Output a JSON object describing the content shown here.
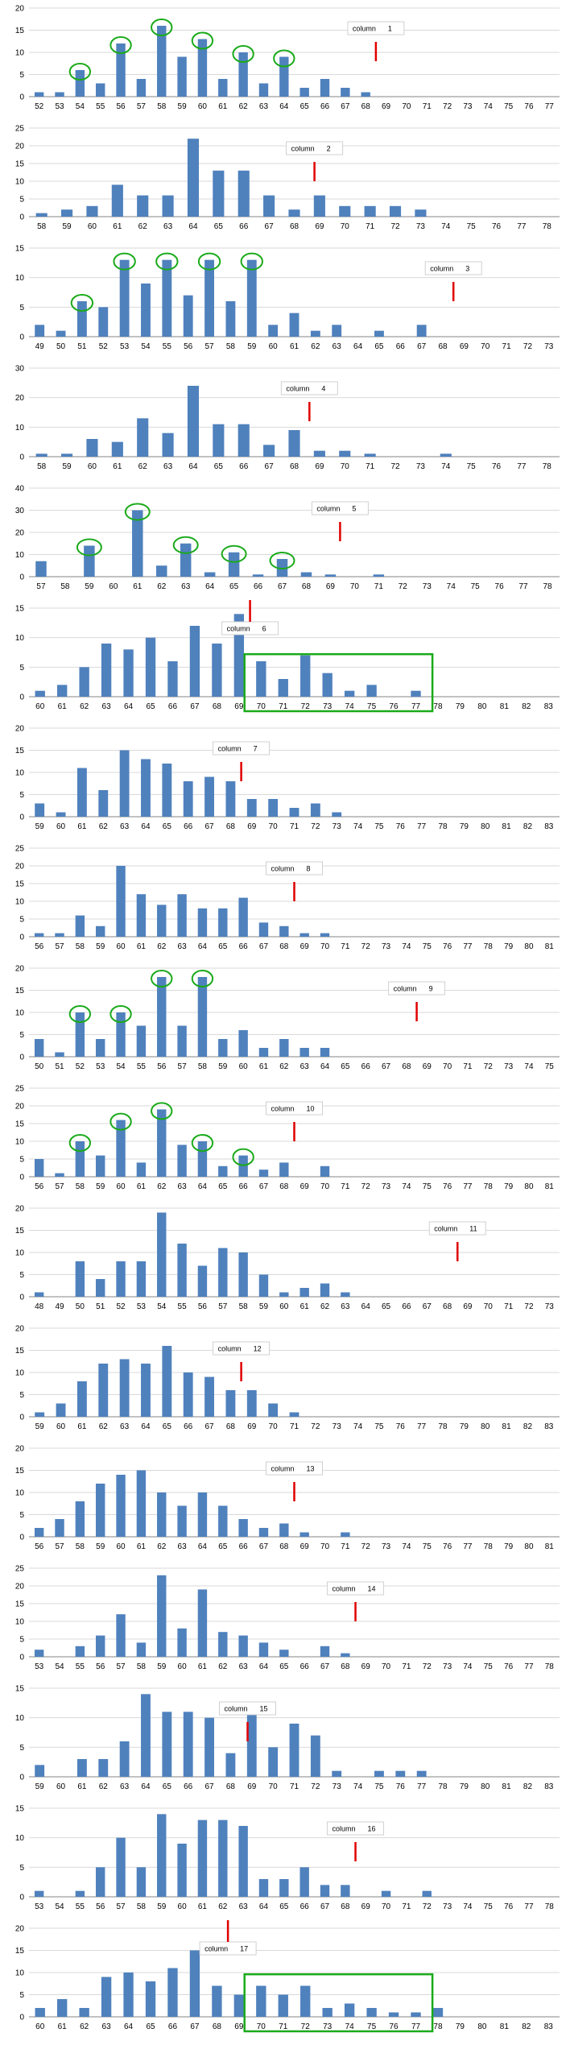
{
  "chart_data": [
    {
      "type": "bar",
      "ylim": [
        0,
        20
      ],
      "yticks": [
        0,
        5,
        10,
        15,
        20
      ],
      "categories": [
        "52",
        "53",
        "54",
        "55",
        "56",
        "57",
        "58",
        "59",
        "60",
        "61",
        "62",
        "63",
        "64",
        "65",
        "66",
        "67",
        "68",
        "69",
        "70",
        "71",
        "72",
        "73",
        "74",
        "75",
        "76",
        "77"
      ],
      "values": [
        1,
        1,
        6,
        3,
        12,
        4,
        16,
        9,
        13,
        4,
        10,
        3,
        9,
        2,
        4,
        2,
        1,
        0,
        0,
        0,
        0,
        0,
        0,
        0,
        0,
        0
      ],
      "legend": {
        "label": "column",
        "number": "1"
      },
      "marker": 68.5,
      "circles": [
        "54",
        "56",
        "58",
        "60",
        "62",
        "64"
      ]
    },
    {
      "type": "bar",
      "ylim": [
        0,
        25
      ],
      "yticks": [
        0,
        5,
        10,
        15,
        20,
        25
      ],
      "categories": [
        "58",
        "59",
        "60",
        "61",
        "62",
        "63",
        "64",
        "65",
        "66",
        "67",
        "68",
        "69",
        "70",
        "71",
        "72",
        "73",
        "74",
        "75",
        "76",
        "77",
        "78"
      ],
      "values": [
        1,
        2,
        3,
        9,
        6,
        6,
        22,
        13,
        13,
        6,
        2,
        6,
        3,
        3,
        3,
        2,
        0,
        0,
        0,
        0,
        0
      ],
      "legend": {
        "label": "column",
        "number": "2"
      },
      "marker": 68.8
    },
    {
      "type": "bar",
      "ylim": [
        0,
        15
      ],
      "yticks": [
        0,
        5,
        10,
        15
      ],
      "categories": [
        "49",
        "50",
        "51",
        "52",
        "53",
        "54",
        "55",
        "56",
        "57",
        "58",
        "59",
        "60",
        "61",
        "62",
        "63",
        "64",
        "65",
        "66",
        "67",
        "68",
        "69",
        "70",
        "71",
        "72",
        "73"
      ],
      "values": [
        2,
        1,
        6,
        5,
        13,
        9,
        13,
        7,
        13,
        6,
        13,
        2,
        4,
        1,
        2,
        0,
        1,
        0,
        2,
        0,
        0,
        0,
        0,
        0,
        0
      ],
      "legend": {
        "label": "column",
        "number": "3"
      },
      "marker": 68.5,
      "circles": [
        "51",
        "53",
        "55",
        "57",
        "59"
      ]
    },
    {
      "type": "bar",
      "ylim": [
        0,
        30
      ],
      "yticks": [
        0,
        10,
        20,
        30
      ],
      "categories": [
        "58",
        "59",
        "60",
        "61",
        "62",
        "63",
        "64",
        "65",
        "66",
        "67",
        "68",
        "69",
        "70",
        "71",
        "72",
        "73",
        "74",
        "75",
        "76",
        "77",
        "78"
      ],
      "values": [
        1,
        1,
        6,
        5,
        13,
        8,
        24,
        11,
        11,
        4,
        9,
        2,
        2,
        1,
        0,
        0,
        1,
        0,
        0,
        0,
        0
      ],
      "legend": {
        "label": "column",
        "number": "4"
      },
      "marker": 68.6
    },
    {
      "type": "bar",
      "ylim": [
        0,
        40
      ],
      "yticks": [
        0,
        10,
        20,
        30,
        40
      ],
      "categories": [
        "57",
        "58",
        "59",
        "60",
        "61",
        "62",
        "63",
        "64",
        "65",
        "66",
        "67",
        "68",
        "69",
        "70",
        "71",
        "72",
        "73",
        "74",
        "75",
        "76",
        "77",
        "78"
      ],
      "values": [
        7,
        0,
        14,
        0,
        30,
        5,
        15,
        2,
        11,
        1,
        8,
        2,
        1,
        0,
        1,
        0,
        0,
        0,
        0,
        0,
        0,
        0
      ],
      "legend": {
        "label": "column",
        "number": "5"
      },
      "marker": 69.4,
      "circles": [
        "59",
        "61",
        "63",
        "65",
        "67"
      ]
    },
    {
      "type": "bar",
      "ylim": [
        0,
        15
      ],
      "yticks": [
        0,
        5,
        10,
        15
      ],
      "categories": [
        "60",
        "61",
        "62",
        "63",
        "64",
        "65",
        "66",
        "67",
        "68",
        "69",
        "70",
        "71",
        "72",
        "73",
        "74",
        "75",
        "76",
        "77",
        "78",
        "79",
        "80",
        "81",
        "82",
        "83"
      ],
      "values": [
        1,
        2,
        5,
        9,
        8,
        10,
        6,
        12,
        9,
        14,
        6,
        3,
        7,
        4,
        1,
        2,
        0,
        1,
        0,
        0,
        0,
        0,
        0,
        0
      ],
      "legend": {
        "label": "column",
        "number": "6"
      },
      "marker": 69.5,
      "marker_top": true,
      "highlight": [
        "70",
        "77"
      ]
    },
    {
      "type": "bar",
      "ylim": [
        0,
        20
      ],
      "yticks": [
        0,
        5,
        10,
        15,
        20
      ],
      "categories": [
        "59",
        "60",
        "61",
        "62",
        "63",
        "64",
        "65",
        "66",
        "67",
        "68",
        "69",
        "70",
        "71",
        "72",
        "73",
        "74",
        "75",
        "76",
        "77",
        "78",
        "79",
        "80",
        "81",
        "82",
        "83"
      ],
      "values": [
        3,
        1,
        11,
        6,
        15,
        13,
        12,
        8,
        9,
        8,
        4,
        4,
        2,
        3,
        1,
        0,
        0,
        0,
        0,
        0,
        0,
        0,
        0,
        0,
        0
      ],
      "legend": {
        "label": "column",
        "number": "7"
      },
      "marker": 68.5
    },
    {
      "type": "bar",
      "ylim": [
        0,
        25
      ],
      "yticks": [
        0,
        5,
        10,
        15,
        20,
        25
      ],
      "categories": [
        "56",
        "57",
        "58",
        "59",
        "60",
        "61",
        "62",
        "63",
        "64",
        "65",
        "66",
        "67",
        "68",
        "69",
        "70",
        "71",
        "72",
        "73",
        "74",
        "75",
        "76",
        "77",
        "78",
        "79",
        "80",
        "81"
      ],
      "values": [
        1,
        1,
        6,
        3,
        20,
        12,
        9,
        12,
        8,
        8,
        11,
        4,
        3,
        1,
        1,
        0,
        0,
        0,
        0,
        0,
        0,
        0,
        0,
        0,
        0,
        0
      ],
      "legend": {
        "label": "column",
        "number": "8"
      },
      "marker": 68.5
    },
    {
      "type": "bar",
      "ylim": [
        0,
        20
      ],
      "yticks": [
        0,
        5,
        10,
        15,
        20
      ],
      "categories": [
        "50",
        "51",
        "52",
        "53",
        "54",
        "55",
        "56",
        "57",
        "58",
        "59",
        "60",
        "61",
        "62",
        "63",
        "64",
        "65",
        "66",
        "67",
        "68",
        "69",
        "70",
        "71",
        "72",
        "73",
        "74",
        "75"
      ],
      "values": [
        4,
        1,
        10,
        4,
        10,
        7,
        18,
        7,
        18,
        4,
        6,
        2,
        4,
        2,
        2,
        0,
        0,
        0,
        0,
        0,
        0,
        0,
        0,
        0,
        0,
        0
      ],
      "legend": {
        "label": "column",
        "number": "9"
      },
      "marker": 68.5,
      "circles": [
        "52",
        "54",
        "56",
        "58"
      ]
    },
    {
      "type": "bar",
      "ylim": [
        0,
        25
      ],
      "yticks": [
        0,
        5,
        10,
        15,
        20,
        25
      ],
      "categories": [
        "56",
        "57",
        "58",
        "59",
        "60",
        "61",
        "62",
        "63",
        "64",
        "65",
        "66",
        "67",
        "68",
        "69",
        "70",
        "71",
        "72",
        "73",
        "74",
        "75",
        "76",
        "77",
        "78",
        "79",
        "80",
        "81"
      ],
      "values": [
        5,
        1,
        10,
        6,
        16,
        4,
        19,
        9,
        10,
        3,
        6,
        2,
        4,
        0,
        3,
        0,
        0,
        0,
        0,
        0,
        0,
        0,
        0,
        0,
        0,
        0
      ],
      "legend": {
        "label": "column",
        "number": "10"
      },
      "marker": 68.5,
      "circles": [
        "58",
        "60",
        "62",
        "64",
        "66"
      ]
    },
    {
      "type": "bar",
      "ylim": [
        0,
        20
      ],
      "yticks": [
        0,
        5,
        10,
        15,
        20
      ],
      "categories": [
        "48",
        "49",
        "50",
        "51",
        "52",
        "53",
        "54",
        "55",
        "56",
        "57",
        "58",
        "59",
        "60",
        "61",
        "62",
        "63",
        "64",
        "65",
        "66",
        "67",
        "68",
        "69",
        "70",
        "71",
        "72",
        "73"
      ],
      "values": [
        1,
        0,
        8,
        4,
        8,
        8,
        19,
        12,
        7,
        11,
        10,
        5,
        1,
        2,
        3,
        1,
        0,
        0,
        0,
        0,
        0,
        0,
        0,
        0,
        0,
        0
      ],
      "legend": {
        "label": "column",
        "number": "11"
      },
      "marker": 68.5
    },
    {
      "type": "bar",
      "ylim": [
        0,
        20
      ],
      "yticks": [
        0,
        5,
        10,
        15,
        20
      ],
      "categories": [
        "59",
        "60",
        "61",
        "62",
        "63",
        "64",
        "65",
        "66",
        "67",
        "68",
        "69",
        "70",
        "71",
        "72",
        "73",
        "74",
        "75",
        "76",
        "77",
        "78",
        "79",
        "80",
        "81",
        "82",
        "83"
      ],
      "values": [
        1,
        3,
        8,
        12,
        13,
        12,
        16,
        10,
        9,
        6,
        6,
        3,
        1,
        0,
        0,
        0,
        0,
        0,
        0,
        0,
        0,
        0,
        0,
        0,
        0
      ],
      "legend": {
        "label": "column",
        "number": "12"
      },
      "marker": 68.5
    },
    {
      "type": "bar",
      "ylim": [
        0,
        20
      ],
      "yticks": [
        0,
        5,
        10,
        15,
        20
      ],
      "categories": [
        "56",
        "57",
        "58",
        "59",
        "60",
        "61",
        "62",
        "63",
        "64",
        "65",
        "66",
        "67",
        "68",
        "69",
        "70",
        "71",
        "72",
        "73",
        "74",
        "75",
        "76",
        "77",
        "78",
        "79",
        "80",
        "81"
      ],
      "values": [
        2,
        4,
        8,
        12,
        14,
        15,
        10,
        7,
        10,
        7,
        4,
        2,
        3,
        1,
        0,
        1,
        0,
        0,
        0,
        0,
        0,
        0,
        0,
        0,
        0,
        0
      ],
      "legend": {
        "label": "column",
        "number": "13"
      },
      "marker": 68.5
    },
    {
      "type": "bar",
      "ylim": [
        0,
        25
      ],
      "yticks": [
        0,
        5,
        10,
        15,
        20,
        25
      ],
      "categories": [
        "53",
        "54",
        "55",
        "56",
        "57",
        "58",
        "59",
        "60",
        "61",
        "62",
        "63",
        "64",
        "65",
        "66",
        "67",
        "68",
        "69",
        "70",
        "71",
        "72",
        "73",
        "74",
        "75",
        "76",
        "77",
        "78"
      ],
      "values": [
        2,
        0,
        3,
        6,
        12,
        4,
        23,
        8,
        19,
        7,
        6,
        4,
        2,
        0,
        3,
        1,
        0,
        0,
        0,
        0,
        0,
        0,
        0,
        0,
        0,
        0
      ],
      "legend": {
        "label": "column",
        "number": "14"
      },
      "marker": 68.5
    },
    {
      "type": "bar",
      "ylim": [
        0,
        15
      ],
      "yticks": [
        0,
        5,
        10,
        15
      ],
      "categories": [
        "59",
        "60",
        "61",
        "62",
        "63",
        "64",
        "65",
        "66",
        "67",
        "68",
        "69",
        "70",
        "71",
        "72",
        "73",
        "74",
        "75",
        "76",
        "77",
        "78",
        "79",
        "80",
        "81",
        "82",
        "83"
      ],
      "values": [
        2,
        0,
        3,
        3,
        6,
        14,
        11,
        11,
        10,
        4,
        11,
        5,
        9,
        7,
        1,
        0,
        1,
        1,
        1,
        0,
        0,
        0,
        0,
        0,
        0
      ],
      "legend": {
        "label": "column",
        "number": "15"
      },
      "marker": 68.8
    },
    {
      "type": "bar",
      "ylim": [
        0,
        15
      ],
      "yticks": [
        0,
        5,
        10,
        15
      ],
      "categories": [
        "53",
        "54",
        "55",
        "56",
        "57",
        "58",
        "59",
        "60",
        "61",
        "62",
        "63",
        "64",
        "65",
        "66",
        "67",
        "68",
        "69",
        "70",
        "71",
        "72",
        "73",
        "74",
        "75",
        "76",
        "77",
        "78"
      ],
      "values": [
        1,
        0,
        1,
        5,
        10,
        5,
        14,
        9,
        13,
        13,
        12,
        3,
        3,
        5,
        2,
        2,
        0,
        1,
        0,
        1,
        0,
        0,
        0,
        0,
        0,
        0
      ],
      "legend": {
        "label": "column",
        "number": "16"
      },
      "marker": 68.5
    },
    {
      "type": "bar",
      "ylim": [
        0,
        20
      ],
      "yticks": [
        0,
        5,
        10,
        15,
        20
      ],
      "categories": [
        "60",
        "61",
        "62",
        "63",
        "64",
        "65",
        "66",
        "67",
        "68",
        "69",
        "70",
        "71",
        "72",
        "73",
        "74",
        "75",
        "76",
        "77",
        "78",
        "79",
        "80",
        "81",
        "82",
        "83"
      ],
      "values": [
        2,
        4,
        2,
        9,
        10,
        8,
        11,
        15,
        7,
        5,
        7,
        5,
        7,
        2,
        3,
        2,
        1,
        1,
        2,
        0,
        0,
        0,
        0,
        0
      ],
      "legend": {
        "label": "column",
        "number": "17"
      },
      "marker": 68.5,
      "marker_top": true,
      "highlight": [
        "70",
        "77"
      ]
    }
  ]
}
